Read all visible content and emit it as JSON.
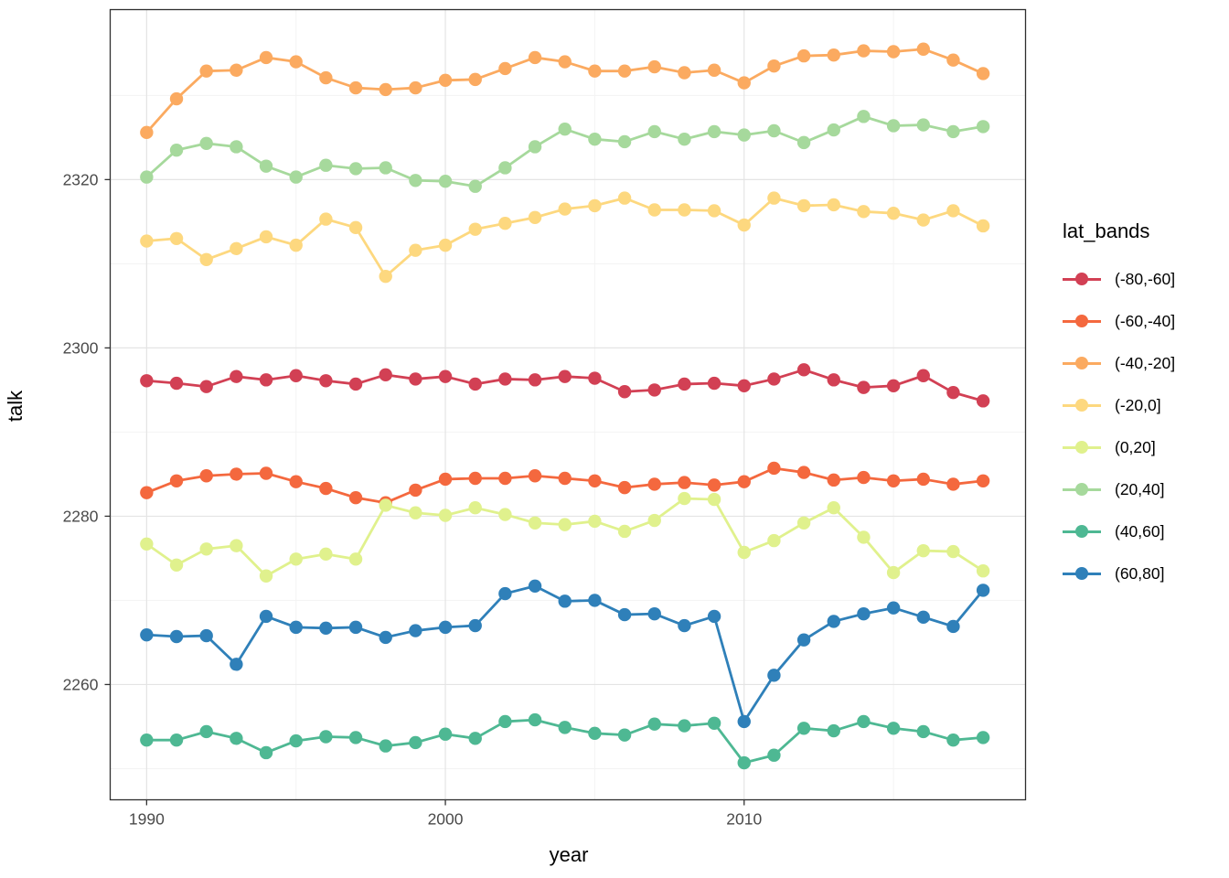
{
  "legend": {
    "title": "lat_bands"
  },
  "chart_data": {
    "type": "line",
    "title": "",
    "xlabel": "year",
    "ylabel": "talk",
    "x": [
      1990,
      1991,
      1992,
      1993,
      1994,
      1995,
      1996,
      1997,
      1998,
      1999,
      2000,
      2001,
      2002,
      2003,
      2004,
      2005,
      2006,
      2007,
      2008,
      2009,
      2010,
      2011,
      2012,
      2013,
      2014,
      2015,
      2016,
      2017,
      2018
    ],
    "series": [
      {
        "name": "(-80,-60]",
        "color": "#d24054",
        "values": [
          2296.1,
          2295.8,
          2295.4,
          2296.6,
          2296.2,
          2296.7,
          2296.1,
          2295.7,
          2296.8,
          2296.3,
          2296.6,
          2295.7,
          2296.3,
          2296.2,
          2296.6,
          2296.4,
          2294.8,
          2295.0,
          2295.7,
          2295.8,
          2295.5,
          2296.3,
          2297.4,
          2296.2,
          2295.3,
          2295.5,
          2296.7,
          2294.7,
          2293.7
        ]
      },
      {
        "name": "(-60,-40]",
        "color": "#f4683e",
        "values": [
          2282.8,
          2284.2,
          2284.8,
          2285.0,
          2285.1,
          2284.1,
          2283.3,
          2282.2,
          2281.6,
          2283.1,
          2284.4,
          2284.5,
          2284.5,
          2284.8,
          2284.5,
          2284.2,
          2283.4,
          2283.8,
          2284.0,
          2283.7,
          2284.1,
          2285.7,
          2285.2,
          2284.3,
          2284.6,
          2284.2,
          2284.4,
          2283.8,
          2284.2
        ]
      },
      {
        "name": "(-40,-20]",
        "color": "#fbaa60",
        "values": [
          2325.6,
          2329.6,
          2332.9,
          2333.0,
          2334.5,
          2334.0,
          2332.1,
          2330.9,
          2330.7,
          2330.9,
          2331.8,
          2331.9,
          2333.2,
          2334.5,
          2334.0,
          2332.9,
          2332.9,
          2333.4,
          2332.7,
          2333.0,
          2331.5,
          2333.5,
          2334.7,
          2334.8,
          2335.3,
          2335.2,
          2335.5,
          2334.2,
          2332.6
        ]
      },
      {
        "name": "(-20,0]",
        "color": "#fdd87f",
        "values": [
          2312.7,
          2313.0,
          2310.5,
          2311.8,
          2313.2,
          2312.2,
          2315.3,
          2314.3,
          2308.5,
          2311.6,
          2312.2,
          2314.1,
          2314.8,
          2315.5,
          2316.5,
          2316.9,
          2317.8,
          2316.4,
          2316.4,
          2316.3,
          2314.6,
          2317.8,
          2316.9,
          2317.0,
          2316.2,
          2316.0,
          2315.2,
          2316.3,
          2314.5
        ]
      },
      {
        "name": "(0,20]",
        "color": "#e0f18d",
        "values": [
          2276.7,
          2274.2,
          2276.1,
          2276.5,
          2272.9,
          2274.9,
          2275.5,
          2274.9,
          2281.3,
          2280.4,
          2280.1,
          2281.0,
          2280.2,
          2279.2,
          2279.0,
          2279.4,
          2278.2,
          2279.5,
          2282.1,
          2282.0,
          2275.7,
          2277.1,
          2279.2,
          2281.0,
          2277.5,
          2273.3,
          2275.9,
          2275.8,
          2273.5
        ]
      },
      {
        "name": "(20,40]",
        "color": "#a6d99c",
        "values": [
          2320.3,
          2323.5,
          2324.3,
          2323.9,
          2321.6,
          2320.3,
          2321.7,
          2321.3,
          2321.4,
          2319.9,
          2319.8,
          2319.2,
          2321.4,
          2323.9,
          2326.0,
          2324.8,
          2324.5,
          2325.7,
          2324.8,
          2325.7,
          2325.3,
          2325.8,
          2324.4,
          2325.9,
          2327.5,
          2326.4,
          2326.5,
          2325.7,
          2326.3
        ]
      },
      {
        "name": "(40,60]",
        "color": "#4eb893",
        "values": [
          2253.4,
          2253.4,
          2254.4,
          2253.6,
          2251.9,
          2253.3,
          2253.8,
          2253.7,
          2252.7,
          2253.1,
          2254.1,
          2253.6,
          2255.6,
          2255.8,
          2254.9,
          2254.2,
          2254.0,
          2255.3,
          2255.1,
          2255.4,
          2250.7,
          2251.6,
          2254.8,
          2254.5,
          2255.6,
          2254.8,
          2254.4,
          2253.4,
          2253.7
        ]
      },
      {
        "name": "(60,80]",
        "color": "#2f80b9",
        "values": [
          2265.9,
          2265.7,
          2265.8,
          2262.4,
          2268.1,
          2266.8,
          2266.7,
          2266.8,
          2265.6,
          2266.4,
          2266.8,
          2267.0,
          2270.8,
          2271.7,
          2269.9,
          2270.0,
          2268.3,
          2268.4,
          2267.0,
          2268.1,
          2255.6,
          2261.1,
          2265.3,
          2267.5,
          2268.4,
          2269.1,
          2268.0,
          2266.9,
          2271.2
        ]
      }
    ],
    "xlim": [
      1988.78,
      2019.42
    ],
    "ylim": [
      2246.3,
      2340.2
    ],
    "x_ticks": [
      1990,
      2000,
      2010
    ],
    "y_ticks": [
      2260,
      2280,
      2300,
      2320
    ],
    "x_minor": [
      1995,
      2005,
      2015
    ],
    "y_minor": [
      2250,
      2270,
      2290,
      2310,
      2330
    ],
    "grid": true,
    "legend_position": "right",
    "colors": {
      "tick_label": "#4a4a4a",
      "grid_major": "#e4e4e4",
      "grid_minor": "#f3f3f3",
      "panel_border": "#2e2e2e"
    }
  }
}
